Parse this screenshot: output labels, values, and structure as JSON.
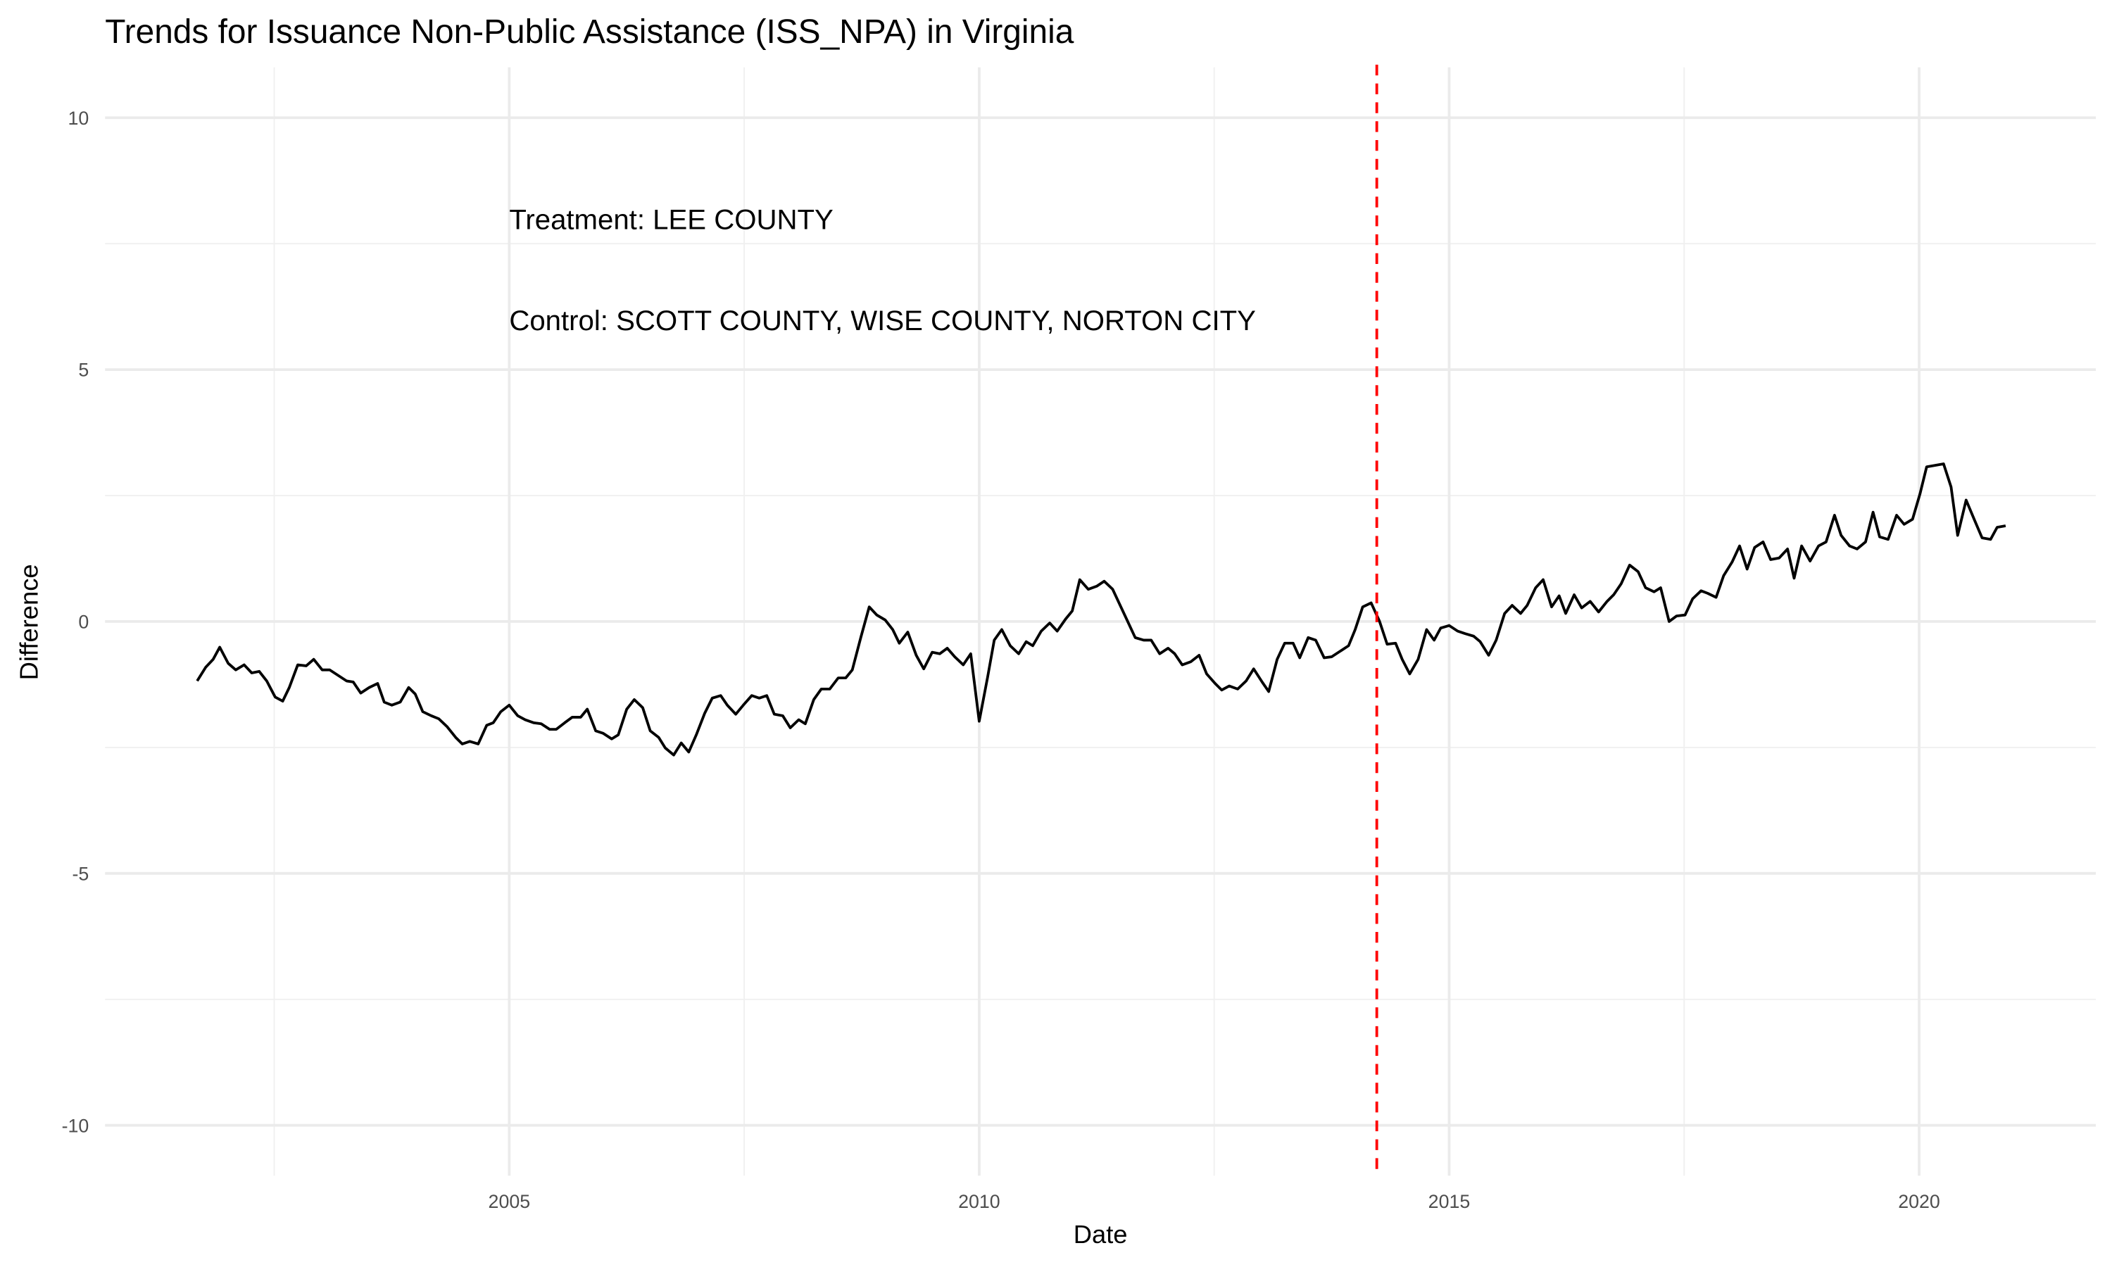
{
  "chart_data": {
    "type": "line",
    "title": "Trends for Issuance Non-Public Assistance (ISS_NPA) in Virginia",
    "x_label": "Date",
    "y_label": "Difference",
    "color": "#000000",
    "x": [
      2001.68,
      2001.77,
      2001.85,
      2001.92,
      2002.01,
      2002.09,
      2002.18,
      2002.26,
      2002.34,
      2002.42,
      2002.51,
      2002.59,
      2002.66,
      2002.75,
      2002.84,
      2002.92,
      2003.01,
      2003.09,
      2003.18,
      2003.27,
      2003.34,
      2003.42,
      2003.51,
      2003.6,
      2003.67,
      2003.75,
      2003.84,
      2003.93,
      2004.0,
      2004.08,
      2004.17,
      2004.25,
      2004.34,
      2004.43,
      2004.5,
      2004.58,
      2004.67,
      2004.76,
      2004.83,
      2004.91,
      2005.0,
      2005.09,
      2005.17,
      2005.26,
      2005.34,
      2005.43,
      2005.5,
      2005.59,
      2005.67,
      2005.76,
      2005.83,
      2005.92,
      2006.0,
      2006.09,
      2006.16,
      2006.25,
      2006.33,
      2006.42,
      2006.5,
      2006.59,
      2006.66,
      2006.75,
      2006.83,
      2006.91,
      2006.99,
      2007.08,
      2007.16,
      2007.25,
      2007.32,
      2007.41,
      2007.49,
      2007.58,
      2007.66,
      2007.74,
      2007.82,
      2007.91,
      2007.99,
      2008.08,
      2008.15,
      2008.24,
      2008.32,
      2008.41,
      2008.5,
      2008.58,
      2008.65,
      2008.74,
      2008.83,
      2008.91,
      2009.0,
      2009.08,
      2009.15,
      2009.24,
      2009.33,
      2009.41,
      2009.5,
      2009.58,
      2009.66,
      2009.74,
      2009.83,
      2009.91,
      2010.0,
      2010.09,
      2010.16,
      2010.24,
      2010.33,
      2010.42,
      2010.5,
      2010.57,
      2010.66,
      2010.75,
      2010.83,
      2010.92,
      2010.99,
      2011.07,
      2011.16,
      2011.25,
      2011.33,
      2011.42,
      2011.5,
      2011.58,
      2011.66,
      2011.75,
      2011.83,
      2011.92,
      2012.01,
      2012.08,
      2012.16,
      2012.25,
      2012.34,
      2012.42,
      2012.51,
      2012.58,
      2012.66,
      2012.75,
      2012.84,
      2012.92,
      2013.01,
      2013.08,
      2013.17,
      2013.25,
      2013.34,
      2013.41,
      2013.5,
      2013.58,
      2013.67,
      2013.75,
      2013.84,
      2013.93,
      2014.0,
      2014.08,
      2014.17,
      2014.26,
      2014.34,
      2014.43,
      2014.5,
      2014.58,
      2014.67,
      2014.76,
      2014.84,
      2014.91,
      2015.0,
      2015.09,
      2015.17,
      2015.26,
      2015.33,
      2015.42,
      2015.5,
      2015.59,
      2015.67,
      2015.76,
      2015.83,
      2015.92,
      2016.0,
      2016.09,
      2016.17,
      2016.24,
      2016.33,
      2016.41,
      2016.5,
      2016.59,
      2016.68,
      2016.75,
      2016.83,
      2016.92,
      2017.01,
      2017.09,
      2017.18,
      2017.25,
      2017.34,
      2017.42,
      2017.51,
      2017.59,
      2017.68,
      2017.75,
      2017.84,
      2017.92,
      2018.01,
      2018.09,
      2018.17,
      2018.25,
      2018.34,
      2018.42,
      2018.51,
      2018.6,
      2018.67,
      2018.75,
      2018.84,
      2018.93,
      2019.01,
      2019.1,
      2019.17,
      2019.26,
      2019.34,
      2019.43,
      2019.51,
      2019.58,
      2019.67,
      2019.76,
      2019.84,
      2019.93,
      2020.01,
      2020.08,
      2020.17,
      2020.26,
      2020.34,
      2020.41,
      2020.5,
      2020.59,
      2020.67,
      2020.76,
      2020.83,
      2020.92
    ],
    "values": [
      -1.18,
      -0.91,
      -0.75,
      -0.51,
      -0.83,
      -0.96,
      -0.86,
      -1.02,
      -0.99,
      -1.18,
      -1.5,
      -1.58,
      -1.31,
      -0.86,
      -0.88,
      -0.75,
      -0.96,
      -0.96,
      -1.07,
      -1.18,
      -1.2,
      -1.42,
      -1.31,
      -1.23,
      -1.6,
      -1.66,
      -1.6,
      -1.31,
      -1.44,
      -1.79,
      -1.87,
      -1.93,
      -2.09,
      -2.3,
      -2.43,
      -2.38,
      -2.43,
      -2.06,
      -2.01,
      -1.79,
      -1.66,
      -1.87,
      -1.95,
      -2.01,
      -2.03,
      -2.14,
      -2.14,
      -2.01,
      -1.9,
      -1.9,
      -1.74,
      -2.17,
      -2.22,
      -2.33,
      -2.25,
      -1.74,
      -1.55,
      -1.71,
      -2.17,
      -2.3,
      -2.51,
      -2.65,
      -2.41,
      -2.59,
      -2.25,
      -1.82,
      -1.52,
      -1.47,
      -1.66,
      -1.84,
      -1.66,
      -1.47,
      -1.52,
      -1.47,
      -1.84,
      -1.87,
      -2.11,
      -1.95,
      -2.03,
      -1.55,
      -1.34,
      -1.34,
      -1.12,
      -1.12,
      -0.96,
      -0.32,
      0.29,
      0.13,
      0.03,
      -0.16,
      -0.43,
      -0.21,
      -0.67,
      -0.94,
      -0.61,
      -0.64,
      -0.53,
      -0.7,
      -0.86,
      -0.64,
      -1.98,
      -1.1,
      -0.37,
      -0.16,
      -0.48,
      -0.64,
      -0.4,
      -0.48,
      -0.19,
      -0.03,
      -0.19,
      0.05,
      0.21,
      0.83,
      0.64,
      0.7,
      0.8,
      0.64,
      0.32,
      0.0,
      -0.32,
      -0.37,
      -0.37,
      -0.64,
      -0.53,
      -0.64,
      -0.86,
      -0.8,
      -0.67,
      -1.04,
      -1.23,
      -1.36,
      -1.28,
      -1.34,
      -1.18,
      -0.94,
      -1.2,
      -1.39,
      -0.75,
      -0.43,
      -0.43,
      -0.72,
      -0.32,
      -0.37,
      -0.72,
      -0.7,
      -0.59,
      -0.48,
      -0.16,
      0.29,
      0.37,
      0.0,
      -0.45,
      -0.43,
      -0.75,
      -1.04,
      -0.75,
      -0.16,
      -0.37,
      -0.13,
      -0.08,
      -0.19,
      -0.24,
      -0.29,
      -0.4,
      -0.67,
      -0.37,
      0.16,
      0.32,
      0.16,
      0.32,
      0.67,
      0.83,
      0.29,
      0.51,
      0.16,
      0.53,
      0.27,
      0.4,
      0.19,
      0.4,
      0.53,
      0.75,
      1.12,
      0.99,
      0.67,
      0.59,
      0.67,
      0.0,
      0.11,
      0.13,
      0.45,
      0.61,
      0.56,
      0.48,
      0.91,
      1.18,
      1.5,
      1.04,
      1.47,
      1.58,
      1.23,
      1.26,
      1.44,
      0.86,
      1.5,
      1.2,
      1.5,
      1.58,
      2.11,
      1.71,
      1.5,
      1.44,
      1.58,
      2.17,
      1.68,
      1.63,
      2.11,
      1.93,
      2.03,
      2.54,
      3.07,
      3.1,
      3.13,
      2.67,
      1.71,
      2.41,
      2.01,
      1.66,
      1.63,
      1.87,
      1.9
    ],
    "xlim": [
      2000.7,
      2021.88
    ],
    "xticks": [
      2005,
      2010,
      2015,
      2020
    ],
    "x_minor_ticks": [
      2002.5,
      2007.5,
      2012.5,
      2017.5
    ],
    "ylim": [
      -11,
      11
    ],
    "yticks": [
      -10,
      -5,
      0,
      5,
      10
    ],
    "y_minor_ticks": [
      -7.5,
      -2.5,
      2.5,
      7.5
    ],
    "grid": true,
    "vline": {
      "x": 2014.23,
      "color": "#ff0000",
      "dashed": true
    },
    "annotations": [
      {
        "text": "Treatment: LEE COUNTY",
        "x": 2005,
        "y": 8
      },
      {
        "text": "Control: SCOTT COUNTY, WISE COUNTY, NORTON CITY",
        "x": 2005,
        "y": 6
      }
    ]
  }
}
